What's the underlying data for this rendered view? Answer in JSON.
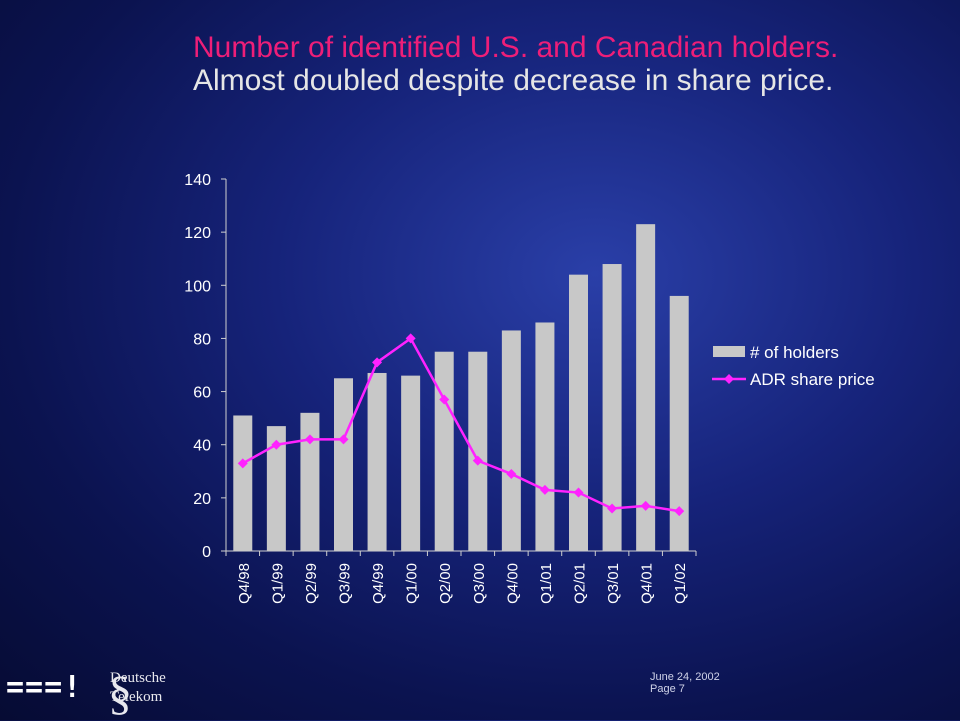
{
  "slide": {
    "title": "Number of identified U.S. and Canadian holders.",
    "subtitle": "Almost doubled despite decrease in share price.",
    "footer_date": "June 24, 2002",
    "footer_page": "Page  7",
    "logo_company": "Deutsche Telekom",
    "logo_company_line1": "Deutsche",
    "logo_company_line2": "Telekom",
    "logo_marks": "===!",
    "colors": {
      "title": "#ee1e78",
      "bar": "#c8c8c8",
      "line": "#ff22ff",
      "axis": "#d0d0d0"
    }
  },
  "chart_data": {
    "type": "bar",
    "categories": [
      "Q4/98",
      "Q1/99",
      "Q2/99",
      "Q3/99",
      "Q4/99",
      "Q1/00",
      "Q2/00",
      "Q3/00",
      "Q4/00",
      "Q1/01",
      "Q2/01",
      "Q3/01",
      "Q4/01",
      "Q1/02"
    ],
    "series": [
      {
        "name": "# of holders",
        "type": "bar",
        "values": [
          51,
          47,
          52,
          65,
          67,
          66,
          75,
          75,
          83,
          86,
          104,
          108,
          123,
          96
        ]
      },
      {
        "name": "ADR share price",
        "type": "line",
        "marker": "diamond",
        "values": [
          33,
          40,
          42,
          42,
          71,
          80,
          57,
          34,
          29,
          23,
          22,
          16,
          17,
          15
        ]
      }
    ],
    "ylim": [
      0,
      140
    ],
    "yticks": [
      0,
      20,
      40,
      60,
      80,
      100,
      120,
      140
    ],
    "legend": "right",
    "grid": false
  }
}
